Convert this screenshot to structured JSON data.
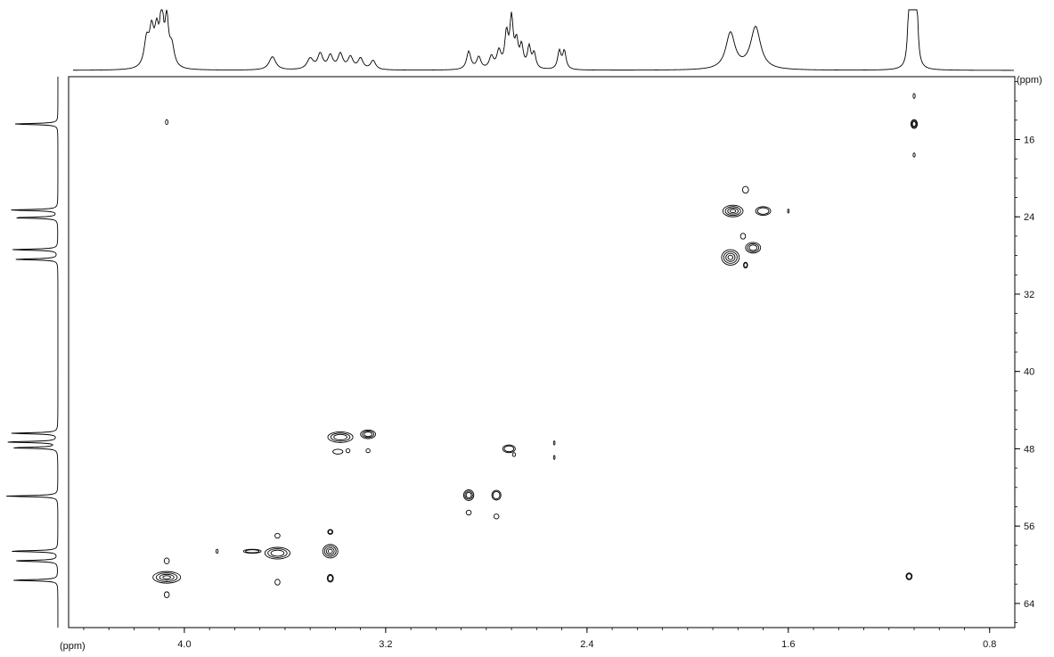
{
  "chart_data": {
    "type": "heatmap",
    "title": "",
    "xlabel": "(ppm)",
    "ylabel": "(ppm)",
    "xlim": [
      4.46,
      0.7
    ],
    "ylim": [
      9.5,
      66.5
    ],
    "x_ticks": [
      "4.0",
      "3.2",
      "2.4",
      "1.6",
      "0.8"
    ],
    "y_ticks": [
      "16",
      "24",
      "32",
      "40",
      "48",
      "56",
      "64"
    ],
    "grid": false,
    "legend": "none",
    "colors": {
      "contour": "#000000",
      "trace": "#000000",
      "frame": "#000000"
    },
    "proton_projection": [
      {
        "shift": 4.15,
        "height": 0.45,
        "width": 0.012
      },
      {
        "shift": 4.13,
        "height": 0.55,
        "width": 0.01
      },
      {
        "shift": 4.11,
        "height": 0.55,
        "width": 0.01
      },
      {
        "shift": 4.09,
        "height": 0.9,
        "width": 0.008
      },
      {
        "shift": 4.07,
        "height": 0.75,
        "width": 0.008
      },
      {
        "shift": 4.05,
        "height": 0.35,
        "width": 0.012
      },
      {
        "shift": 3.65,
        "height": 0.22,
        "width": 0.016
      },
      {
        "shift": 3.5,
        "height": 0.18,
        "width": 0.015
      },
      {
        "shift": 3.46,
        "height": 0.25,
        "width": 0.012
      },
      {
        "shift": 3.42,
        "height": 0.22,
        "width": 0.012
      },
      {
        "shift": 3.38,
        "height": 0.25,
        "width": 0.012
      },
      {
        "shift": 3.34,
        "height": 0.2,
        "width": 0.012
      },
      {
        "shift": 3.3,
        "height": 0.18,
        "width": 0.012
      },
      {
        "shift": 3.25,
        "height": 0.15,
        "width": 0.012
      },
      {
        "shift": 2.87,
        "height": 0.3,
        "width": 0.01
      },
      {
        "shift": 2.83,
        "height": 0.2,
        "width": 0.01
      },
      {
        "shift": 2.78,
        "height": 0.2,
        "width": 0.01
      },
      {
        "shift": 2.75,
        "height": 0.28,
        "width": 0.01
      },
      {
        "shift": 2.72,
        "height": 0.55,
        "width": 0.008
      },
      {
        "shift": 2.7,
        "height": 0.8,
        "width": 0.008
      },
      {
        "shift": 2.68,
        "height": 0.4,
        "width": 0.008
      },
      {
        "shift": 2.66,
        "height": 0.35,
        "width": 0.008
      },
      {
        "shift": 2.63,
        "height": 0.35,
        "width": 0.008
      },
      {
        "shift": 2.61,
        "height": 0.25,
        "width": 0.008
      },
      {
        "shift": 2.51,
        "height": 0.3,
        "width": 0.008
      },
      {
        "shift": 2.49,
        "height": 0.3,
        "width": 0.008
      },
      {
        "shift": 1.83,
        "height": 0.6,
        "width": 0.022
      },
      {
        "shift": 1.73,
        "height": 0.7,
        "width": 0.024
      },
      {
        "shift": 1.12,
        "height": 0.95,
        "width": 0.006
      },
      {
        "shift": 1.11,
        "height": 1.0,
        "width": 0.006
      },
      {
        "shift": 1.1,
        "height": 1.0,
        "width": 0.006
      },
      {
        "shift": 1.09,
        "height": 0.95,
        "width": 0.006
      }
    ],
    "carbon_projection": [
      {
        "shift": 14.4,
        "height": 0.85
      },
      {
        "shift": 23.3,
        "height": 0.92
      },
      {
        "shift": 24.1,
        "height": 0.85
      },
      {
        "shift": 27.4,
        "height": 0.88
      },
      {
        "shift": 28.4,
        "height": 0.82
      },
      {
        "shift": 46.4,
        "height": 0.9
      },
      {
        "shift": 47.3,
        "height": 1.0
      },
      {
        "shift": 47.9,
        "height": 0.88
      },
      {
        "shift": 52.9,
        "height": 1.0
      },
      {
        "shift": 58.6,
        "height": 0.92
      },
      {
        "shift": 59.6,
        "height": 0.85
      },
      {
        "shift": 61.6,
        "height": 0.88
      }
    ],
    "cross_peaks": [
      {
        "x": 1.1,
        "y": 14.4,
        "wx": 0.013,
        "wy": 0.45,
        "levels": 3
      },
      {
        "x": 1.1,
        "y": 11.5,
        "wx": 0.004,
        "wy": 0.25,
        "levels": 1
      },
      {
        "x": 1.1,
        "y": 17.6,
        "wx": 0.004,
        "wy": 0.2,
        "levels": 1
      },
      {
        "x": 4.07,
        "y": 14.2,
        "wx": 0.005,
        "wy": 0.25,
        "levels": 1
      },
      {
        "x": 1.82,
        "y": 23.4,
        "wx": 0.04,
        "wy": 0.6,
        "levels": 4
      },
      {
        "x": 1.7,
        "y": 23.4,
        "wx": 0.03,
        "wy": 0.45,
        "levels": 2
      },
      {
        "x": 1.77,
        "y": 21.2,
        "wx": 0.012,
        "wy": 0.35,
        "levels": 1
      },
      {
        "x": 1.6,
        "y": 23.4,
        "wx": 0.003,
        "wy": 0.2,
        "levels": 1
      },
      {
        "x": 1.83,
        "y": 28.2,
        "wx": 0.035,
        "wy": 0.8,
        "levels": 4
      },
      {
        "x": 1.74,
        "y": 27.2,
        "wx": 0.03,
        "wy": 0.55,
        "levels": 3
      },
      {
        "x": 1.77,
        "y": 29.0,
        "wx": 0.008,
        "wy": 0.3,
        "levels": 2
      },
      {
        "x": 1.78,
        "y": 26.0,
        "wx": 0.01,
        "wy": 0.3,
        "levels": 1
      },
      {
        "x": 3.38,
        "y": 46.8,
        "wx": 0.05,
        "wy": 0.55,
        "levels": 3
      },
      {
        "x": 3.27,
        "y": 46.5,
        "wx": 0.03,
        "wy": 0.45,
        "levels": 3
      },
      {
        "x": 3.39,
        "y": 48.3,
        "wx": 0.02,
        "wy": 0.25,
        "levels": 1
      },
      {
        "x": 3.35,
        "y": 48.2,
        "wx": 0.008,
        "wy": 0.2,
        "levels": 1
      },
      {
        "x": 3.27,
        "y": 48.2,
        "wx": 0.008,
        "wy": 0.2,
        "levels": 1
      },
      {
        "x": 2.71,
        "y": 48.0,
        "wx": 0.025,
        "wy": 0.4,
        "levels": 2
      },
      {
        "x": 2.69,
        "y": 48.6,
        "wx": 0.006,
        "wy": 0.2,
        "levels": 1
      },
      {
        "x": 2.53,
        "y": 47.4,
        "wx": 0.003,
        "wy": 0.2,
        "levels": 1
      },
      {
        "x": 2.53,
        "y": 48.9,
        "wx": 0.003,
        "wy": 0.2,
        "levels": 1
      },
      {
        "x": 2.87,
        "y": 52.8,
        "wx": 0.02,
        "wy": 0.55,
        "levels": 3
      },
      {
        "x": 2.76,
        "y": 52.8,
        "wx": 0.018,
        "wy": 0.5,
        "levels": 2
      },
      {
        "x": 2.87,
        "y": 54.6,
        "wx": 0.01,
        "wy": 0.25,
        "levels": 1
      },
      {
        "x": 2.76,
        "y": 55.0,
        "wx": 0.01,
        "wy": 0.25,
        "levels": 1
      },
      {
        "x": 3.63,
        "y": 58.8,
        "wx": 0.05,
        "wy": 0.6,
        "levels": 3
      },
      {
        "x": 3.42,
        "y": 58.6,
        "wx": 0.03,
        "wy": 0.7,
        "levels": 4
      },
      {
        "x": 3.73,
        "y": 58.6,
        "wx": 0.035,
        "wy": 0.2,
        "levels": 2
      },
      {
        "x": 3.63,
        "y": 57.0,
        "wx": 0.01,
        "wy": 0.25,
        "levels": 1
      },
      {
        "x": 3.42,
        "y": 56.6,
        "wx": 0.01,
        "wy": 0.25,
        "levels": 2
      },
      {
        "x": 3.63,
        "y": 61.8,
        "wx": 0.01,
        "wy": 0.3,
        "levels": 1
      },
      {
        "x": 3.42,
        "y": 61.4,
        "wx": 0.012,
        "wy": 0.4,
        "levels": 2
      },
      {
        "x": 3.87,
        "y": 58.6,
        "wx": 0.004,
        "wy": 0.2,
        "levels": 1
      },
      {
        "x": 4.07,
        "y": 61.3,
        "wx": 0.055,
        "wy": 0.6,
        "levels": 4
      },
      {
        "x": 4.07,
        "y": 59.6,
        "wx": 0.01,
        "wy": 0.3,
        "levels": 1
      },
      {
        "x": 4.07,
        "y": 63.1,
        "wx": 0.01,
        "wy": 0.3,
        "levels": 1
      },
      {
        "x": 1.12,
        "y": 61.2,
        "wx": 0.012,
        "wy": 0.35,
        "levels": 2
      }
    ]
  }
}
